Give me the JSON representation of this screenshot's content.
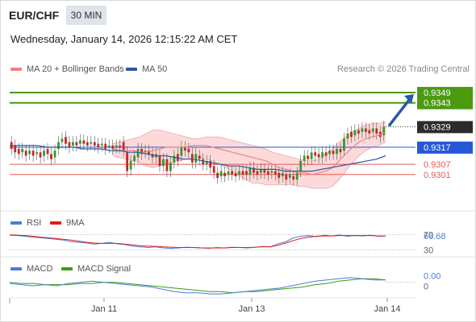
{
  "header": {
    "symbol": "EUR/CHF",
    "timeframe": "30 MIN",
    "datetime": "Wednesday, January 14, 2026 12:15:22 AM CET",
    "credit": "Research © 2026 Trading Central"
  },
  "legend": {
    "main": [
      {
        "label": "MA 20 + Bollinger Bands",
        "color": "#f08080"
      },
      {
        "label": "MA 50",
        "color": "#2a5aa0"
      }
    ],
    "rsi": [
      {
        "label": "RSI",
        "color": "#4a7fd4"
      },
      {
        "label": "9MA",
        "color": "#e01b1b"
      }
    ],
    "macd": [
      {
        "label": "MACD",
        "color": "#4a7fd4"
      },
      {
        "label": "MACD Signal",
        "color": "#3a9a1a"
      }
    ]
  },
  "colors": {
    "up": "#2e9c2e",
    "down": "#c62828",
    "target": "#4c9a10",
    "pivot": "#2557d6",
    "support": "#e35a5a",
    "arrow": "#2a5aa0",
    "band_fill": "#fbd3d3",
    "current": "#2b2b2b"
  },
  "chart_data": {
    "type": "candlestick",
    "ylim": [
      0.9283,
      0.9357
    ],
    "x_ticks": [
      "Jan 11",
      "Jan 13",
      "Jan 14"
    ],
    "levels": [
      {
        "value": 0.9349,
        "label": "0.9349",
        "kind": "target"
      },
      {
        "value": 0.9343,
        "label": "0.9343",
        "kind": "target"
      },
      {
        "value": 0.9329,
        "label": "0.9329",
        "kind": "current"
      },
      {
        "value": 0.9317,
        "label": "0.9317",
        "kind": "pivot"
      },
      {
        "value": 0.9307,
        "label": "0.9307",
        "kind": "support"
      },
      {
        "value": 0.9301,
        "label": "0.9301",
        "kind": "support"
      }
    ],
    "candles": [
      [
        0.932,
        0.9316
      ],
      [
        0.9318,
        0.9314
      ],
      [
        0.9316,
        0.9313
      ],
      [
        0.9314,
        0.9316
      ],
      [
        0.9315,
        0.9312
      ],
      [
        0.9313,
        0.9315
      ],
      [
        0.9315,
        0.9312
      ],
      [
        0.9313,
        0.9314
      ],
      [
        0.9314,
        0.9311
      ],
      [
        0.9312,
        0.9315
      ],
      [
        0.9316,
        0.9313
      ],
      [
        0.9313,
        0.931
      ],
      [
        0.9311,
        0.9315
      ],
      [
        0.9316,
        0.932
      ],
      [
        0.932,
        0.9322
      ],
      [
        0.9323,
        0.9319
      ],
      [
        0.932,
        0.9317
      ],
      [
        0.9318,
        0.932
      ],
      [
        0.932,
        0.9318
      ],
      [
        0.9319,
        0.9321
      ],
      [
        0.9321,
        0.9319
      ],
      [
        0.932,
        0.9318
      ],
      [
        0.9319,
        0.932
      ],
      [
        0.932,
        0.9318
      ],
      [
        0.9319,
        0.9317
      ],
      [
        0.9318,
        0.9319
      ],
      [
        0.9319,
        0.9316
      ],
      [
        0.9317,
        0.9318
      ],
      [
        0.9318,
        0.9316
      ],
      [
        0.9317,
        0.9318
      ],
      [
        0.9318,
        0.9317
      ],
      [
        0.932,
        0.9315
      ],
      [
        0.9314,
        0.9303
      ],
      [
        0.9304,
        0.9309
      ],
      [
        0.9309,
        0.9312
      ],
      [
        0.9311,
        0.9316
      ],
      [
        0.9316,
        0.9313
      ],
      [
        0.9314,
        0.9315
      ],
      [
        0.9315,
        0.9313
      ],
      [
        0.9313,
        0.9311
      ],
      [
        0.9311,
        0.9313
      ],
      [
        0.9312,
        0.9306
      ],
      [
        0.9306,
        0.931
      ],
      [
        0.931,
        0.9303
      ],
      [
        0.9303,
        0.9308
      ],
      [
        0.9308,
        0.9312
      ],
      [
        0.9313,
        0.9309
      ],
      [
        0.9312,
        0.9317
      ],
      [
        0.9317,
        0.9315
      ],
      [
        0.9316,
        0.9314
      ],
      [
        0.9313,
        0.9308
      ],
      [
        0.9308,
        0.9313
      ],
      [
        0.9312,
        0.931
      ],
      [
        0.931,
        0.9307
      ],
      [
        0.9307,
        0.9309
      ],
      [
        0.9309,
        0.9305
      ],
      [
        0.9306,
        0.9302
      ],
      [
        0.9302,
        0.9299
      ],
      [
        0.93,
        0.9303
      ],
      [
        0.9302,
        0.93
      ],
      [
        0.9301,
        0.9303
      ],
      [
        0.9303,
        0.9301
      ],
      [
        0.9302,
        0.93
      ],
      [
        0.9301,
        0.9303
      ],
      [
        0.9303,
        0.9301
      ],
      [
        0.9303,
        0.9301
      ],
      [
        0.9301,
        0.9305
      ],
      [
        0.9305,
        0.9302
      ],
      [
        0.9303,
        0.9301
      ],
      [
        0.9302,
        0.9304
      ],
      [
        0.9304,
        0.9302
      ],
      [
        0.9303,
        0.9301
      ],
      [
        0.9302,
        0.9303
      ],
      [
        0.9303,
        0.9301
      ],
      [
        0.9302,
        0.9299
      ],
      [
        0.93,
        0.9302
      ],
      [
        0.9301,
        0.9298
      ],
      [
        0.9299,
        0.9301
      ],
      [
        0.93,
        0.9298
      ],
      [
        0.9298,
        0.9302
      ],
      [
        0.9303,
        0.9309
      ],
      [
        0.9309,
        0.9312
      ],
      [
        0.9312,
        0.931
      ],
      [
        0.931,
        0.9314
      ],
      [
        0.9314,
        0.9312
      ],
      [
        0.9313,
        0.9311
      ],
      [
        0.9311,
        0.9314
      ],
      [
        0.9314,
        0.9312
      ],
      [
        0.9313,
        0.9315
      ],
      [
        0.9315,
        0.9313
      ],
      [
        0.9313,
        0.9316
      ],
      [
        0.9316,
        0.9314
      ],
      [
        0.9315,
        0.9322
      ],
      [
        0.9322,
        0.9325
      ],
      [
        0.9326,
        0.9323
      ],
      [
        0.9324,
        0.9327
      ],
      [
        0.9327,
        0.9325
      ],
      [
        0.9326,
        0.9328
      ],
      [
        0.9328,
        0.9326
      ],
      [
        0.9327,
        0.9325
      ],
      [
        0.9326,
        0.9328
      ],
      [
        0.9328,
        0.9325
      ],
      [
        0.9326,
        0.9323
      ],
      [
        0.9324,
        0.9329
      ]
    ],
    "ma20": [
      0.9316,
      0.9315,
      0.9315,
      0.9315,
      0.9314,
      0.9314,
      0.9315,
      0.9316,
      0.9317,
      0.9317,
      0.9317,
      0.9317,
      0.9318,
      0.9318,
      0.9318,
      0.9317,
      0.9316,
      0.9315,
      0.9314,
      0.9313,
      0.9312,
      0.9311,
      0.931,
      0.9309,
      0.9307,
      0.9305,
      0.9304,
      0.9303,
      0.9302,
      0.9302,
      0.9301,
      0.9302,
      0.9303,
      0.9305,
      0.9309,
      0.9313,
      0.9317,
      0.932,
      0.9322,
      0.9323,
      0.9324,
      0.9326
    ],
    "bb_upper": [
      0.9319,
      0.932,
      0.9321,
      0.9322,
      0.9323,
      0.9325,
      0.9327,
      0.9327,
      0.9326,
      0.9325,
      0.9324,
      0.9323,
      0.9322,
      0.9322,
      0.9323,
      0.9323,
      0.9323,
      0.9322,
      0.9321,
      0.932,
      0.9319,
      0.9318,
      0.9317,
      0.9316,
      0.9314,
      0.9313,
      0.9312,
      0.9311,
      0.931,
      0.9309,
      0.9309,
      0.931,
      0.9313,
      0.9316,
      0.932,
      0.9323,
      0.9326,
      0.9328,
      0.933,
      0.9331,
      0.9331,
      0.9332
    ],
    "bb_lower": [
      0.9312,
      0.9311,
      0.931,
      0.9309,
      0.9308,
      0.9306,
      0.9305,
      0.9306,
      0.9307,
      0.9308,
      0.9309,
      0.931,
      0.9311,
      0.9311,
      0.931,
      0.9309,
      0.9307,
      0.9305,
      0.9303,
      0.93,
      0.9298,
      0.9296,
      0.9296,
      0.9295,
      0.9295,
      0.9295,
      0.9295,
      0.9295,
      0.9294,
      0.9294,
      0.9293,
      0.9293,
      0.9293,
      0.9294,
      0.9298,
      0.9303,
      0.9308,
      0.9312,
      0.9315,
      0.9317,
      0.9318,
      0.932
    ],
    "ma50": [
      0.9318,
      0.9318,
      0.9318,
      0.9318,
      0.9317,
      0.9317,
      0.9317,
      0.9317,
      0.9316,
      0.9316,
      0.9316,
      0.9315,
      0.9315,
      0.9314,
      0.9314,
      0.9313,
      0.9312,
      0.9312,
      0.9311,
      0.931,
      0.931,
      0.9309,
      0.9308,
      0.9307,
      0.9306,
      0.9306,
      0.9305,
      0.9304,
      0.9304,
      0.9304,
      0.9303,
      0.9303,
      0.9303,
      0.9303,
      0.9304,
      0.9305,
      0.9306,
      0.9307,
      0.9308,
      0.9309,
      0.931,
      0.9312
    ],
    "rsi": {
      "ylim": [
        20,
        80
      ],
      "ticks": [
        30,
        70
      ],
      "last_label": "66.68",
      "rsi": [
        69,
        68,
        66,
        64,
        62,
        60,
        58,
        56,
        52,
        50,
        48,
        45,
        47,
        50,
        46,
        44,
        40,
        38,
        36,
        38,
        35,
        34,
        35,
        37,
        36,
        35,
        34,
        36,
        35,
        37,
        36,
        35,
        37,
        39,
        38,
        46,
        52,
        62,
        66,
        68,
        65,
        69,
        67,
        70,
        66,
        68,
        67,
        69,
        66,
        67
      ],
      "ma9": [
        70,
        69,
        68,
        66,
        64,
        62,
        60,
        58,
        56,
        53,
        50,
        48,
        47,
        47,
        47,
        45,
        43,
        41,
        40,
        39,
        38,
        37,
        36,
        36,
        36,
        35,
        35,
        35,
        35,
        36,
        36,
        36,
        37,
        38,
        38,
        42,
        48,
        55,
        60,
        64,
        66,
        67,
        67,
        68,
        68,
        68,
        68,
        68,
        67,
        67
      ]
    },
    "macd": {
      "ylim": [
        -0.0012,
        0.0006
      ],
      "zero_label": "0",
      "last_label": "0.00",
      "macd": [
        -0.0001,
        -0.0002,
        -0.0003,
        -0.0002,
        -0.0003,
        -0.0001,
        0.0,
        0.0001,
        0.0,
        -0.0001,
        -0.0002,
        -0.0003,
        -0.0004,
        -0.0006,
        -0.0008,
        -0.0009,
        -0.0009,
        -0.001,
        -0.001,
        -0.0009,
        -0.0008,
        -0.0007,
        -0.0006,
        -0.0005,
        -0.0003,
        -0.0001,
        0.0001,
        0.0002,
        0.0003,
        0.0004,
        0.0003,
        0.0002,
        0.0002
      ],
      "signal": [
        0.0,
        -0.0001,
        -0.0001,
        -0.0002,
        -0.0002,
        -0.0002,
        -0.0001,
        -0.0001,
        0.0,
        0.0,
        -0.0001,
        -0.0002,
        -0.0003,
        -0.0004,
        -0.0005,
        -0.0006,
        -0.0007,
        -0.0008,
        -0.0008,
        -0.0009,
        -0.0008,
        -0.0008,
        -0.0007,
        -0.0006,
        -0.0005,
        -0.0004,
        -0.0002,
        -0.0001,
        0.0001,
        0.0002,
        0.0003,
        0.0003,
        0.0002
      ]
    }
  }
}
